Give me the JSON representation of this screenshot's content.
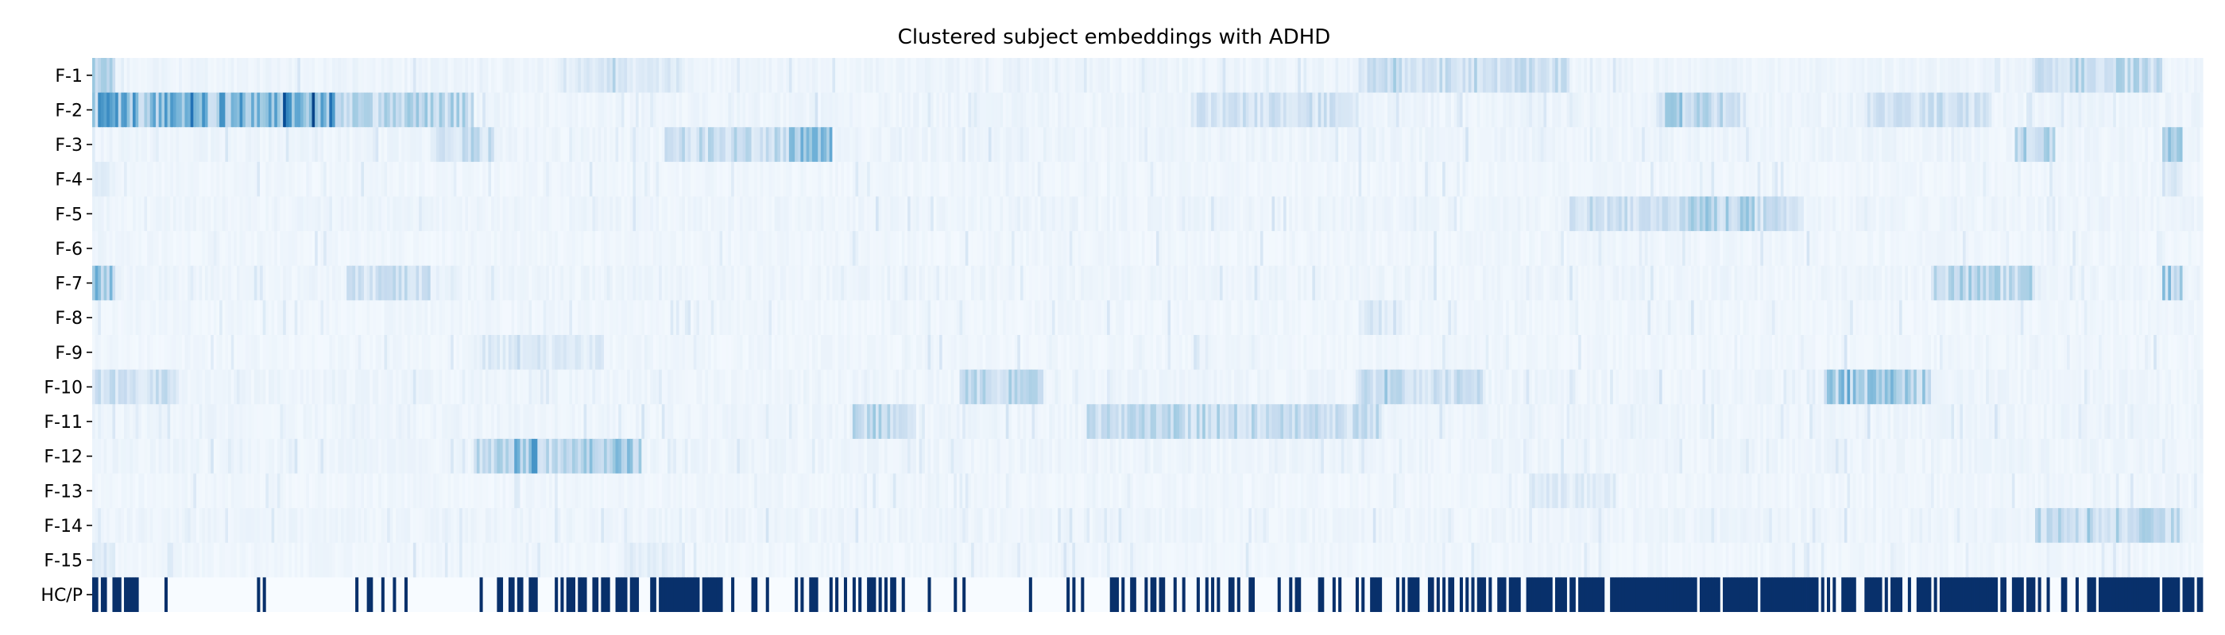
{
  "chart_data": {
    "type": "heatmap",
    "title": "Clustered subject embeddings with ADHD",
    "rows": [
      "F-1",
      "F-2",
      "F-3",
      "F-4",
      "F-5",
      "F-6",
      "F-7",
      "F-8",
      "F-9",
      "F-10",
      "F-11",
      "F-12",
      "F-13",
      "F-14",
      "F-15",
      "HC/P"
    ],
    "n_subjects": 730,
    "colormap": "Blues",
    "value_range": [
      0,
      1
    ],
    "label_row": "HC/P",
    "label_row_encoding": {
      "HC": 0,
      "P": 1
    },
    "feature_profiles": [
      {
        "row": "F-1",
        "base": 0.05,
        "segments": [
          [
            0.0,
            0.01,
            0.3
          ],
          [
            0.22,
            0.28,
            0.14
          ],
          [
            0.6,
            0.66,
            0.22
          ],
          [
            0.65,
            0.7,
            0.2
          ],
          [
            0.92,
            0.98,
            0.24
          ]
        ]
      },
      {
        "row": "F-2",
        "base": 0.05,
        "segments": [
          [
            0.0,
            0.115,
            0.42
          ],
          [
            0.085,
            0.115,
            0.6
          ],
          [
            0.115,
            0.18,
            0.26
          ],
          [
            0.52,
            0.6,
            0.18
          ],
          [
            0.74,
            0.78,
            0.26
          ],
          [
            0.84,
            0.9,
            0.18
          ]
        ]
      },
      {
        "row": "F-3",
        "base": 0.05,
        "segments": [
          [
            0.27,
            0.35,
            0.22
          ],
          [
            0.33,
            0.35,
            0.38
          ],
          [
            0.16,
            0.19,
            0.2
          ],
          [
            0.91,
            0.93,
            0.3
          ],
          [
            0.98,
            0.99,
            0.28
          ]
        ]
      },
      {
        "row": "F-4",
        "base": 0.04,
        "segments": [
          [
            0.0,
            0.01,
            0.1
          ],
          [
            0.98,
            0.99,
            0.2
          ]
        ]
      },
      {
        "row": "F-5",
        "base": 0.05,
        "segments": [
          [
            0.7,
            0.81,
            0.2
          ],
          [
            0.75,
            0.79,
            0.28
          ]
        ]
      },
      {
        "row": "F-6",
        "base": 0.04,
        "segments": [
          [
            0.0,
            0.01,
            0.06
          ]
        ]
      },
      {
        "row": "F-7",
        "base": 0.05,
        "segments": [
          [
            0.0,
            0.01,
            0.38
          ],
          [
            0.12,
            0.16,
            0.2
          ],
          [
            0.87,
            0.92,
            0.26
          ],
          [
            0.98,
            0.99,
            0.32
          ]
        ]
      },
      {
        "row": "F-8",
        "base": 0.04,
        "segments": [
          [
            0.6,
            0.62,
            0.14
          ]
        ]
      },
      {
        "row": "F-9",
        "base": 0.04,
        "segments": [
          [
            0.18,
            0.24,
            0.12
          ]
        ]
      },
      {
        "row": "F-10",
        "base": 0.05,
        "segments": [
          [
            0.0,
            0.04,
            0.2
          ],
          [
            0.41,
            0.45,
            0.24
          ],
          [
            0.6,
            0.66,
            0.2
          ],
          [
            0.82,
            0.87,
            0.32
          ]
        ]
      },
      {
        "row": "F-11",
        "base": 0.05,
        "segments": [
          [
            0.36,
            0.39,
            0.26
          ],
          [
            0.47,
            0.61,
            0.22
          ],
          [
            0.51,
            0.55,
            0.24
          ]
        ]
      },
      {
        "row": "F-12",
        "base": 0.05,
        "segments": [
          [
            0.18,
            0.26,
            0.26
          ],
          [
            0.2,
            0.21,
            0.4
          ],
          [
            0.23,
            0.26,
            0.3
          ]
        ]
      },
      {
        "row": "F-13",
        "base": 0.04,
        "segments": [
          [
            0.68,
            0.72,
            0.12
          ]
        ]
      },
      {
        "row": "F-14",
        "base": 0.05,
        "segments": [
          [
            0.92,
            0.99,
            0.24
          ]
        ]
      },
      {
        "row": "F-15",
        "base": 0.04,
        "segments": [
          [
            0.0,
            0.01,
            0.12
          ],
          [
            0.25,
            0.28,
            0.1
          ]
        ]
      }
    ],
    "label_profile": [
      [
        0.0,
        0.02,
        0.5
      ],
      [
        0.02,
        0.12,
        0.05
      ],
      [
        0.12,
        0.18,
        0.1
      ],
      [
        0.18,
        0.22,
        0.3
      ],
      [
        0.22,
        0.27,
        0.6
      ],
      [
        0.27,
        0.3,
        0.9
      ],
      [
        0.3,
        0.4,
        0.3
      ],
      [
        0.4,
        0.44,
        0.05
      ],
      [
        0.44,
        0.48,
        0.15
      ],
      [
        0.48,
        0.55,
        0.4
      ],
      [
        0.55,
        0.6,
        0.25
      ],
      [
        0.6,
        0.67,
        0.45
      ],
      [
        0.67,
        0.73,
        0.85
      ],
      [
        0.73,
        0.82,
        0.95
      ],
      [
        0.82,
        0.86,
        0.7
      ],
      [
        0.86,
        0.92,
        0.85
      ],
      [
        0.92,
        0.95,
        0.35
      ],
      [
        0.95,
        1.0,
        0.9
      ]
    ],
    "xlabel": "",
    "ylabel": "",
    "grid": false,
    "legend": false
  }
}
